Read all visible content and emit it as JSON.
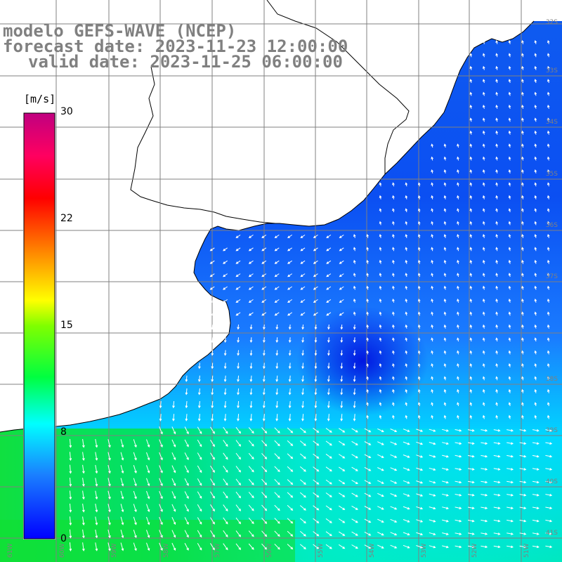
{
  "title": {
    "line1": "modelo GEFS-WAVE (NCEP)",
    "line2": "forecast date: 2023-11-23 12:00:00",
    "line3": "valid date: 2023-11-25 06:00:00"
  },
  "colorbar": {
    "unit": "[m/s]",
    "ticks": [
      "30",
      "22",
      "15",
      "8",
      "0"
    ],
    "tick_values": [
      30,
      22,
      15,
      8,
      0
    ],
    "range": [
      0,
      30
    ],
    "colors": [
      "#0000ff",
      "#1a8cff",
      "#00ffff",
      "#00ff00",
      "#80ff00",
      "#ffff00",
      "#ff8000",
      "#ff0000",
      "#ff0080",
      "#c00080"
    ]
  },
  "map": {
    "variable": "wind speed and direction",
    "land_color": "#ffffff",
    "coast_color": "#000000",
    "grid_color": "#808080",
    "lon_labels": [
      "61W",
      "60W",
      "59W",
      "58W",
      "57W",
      "56W",
      "55W",
      "54W",
      "53W",
      "52W",
      "51W"
    ],
    "lat_labels": [
      "32S",
      "33S",
      "34S",
      "35S",
      "36S",
      "37S",
      "38S",
      "39S",
      "40S",
      "41S"
    ]
  }
}
